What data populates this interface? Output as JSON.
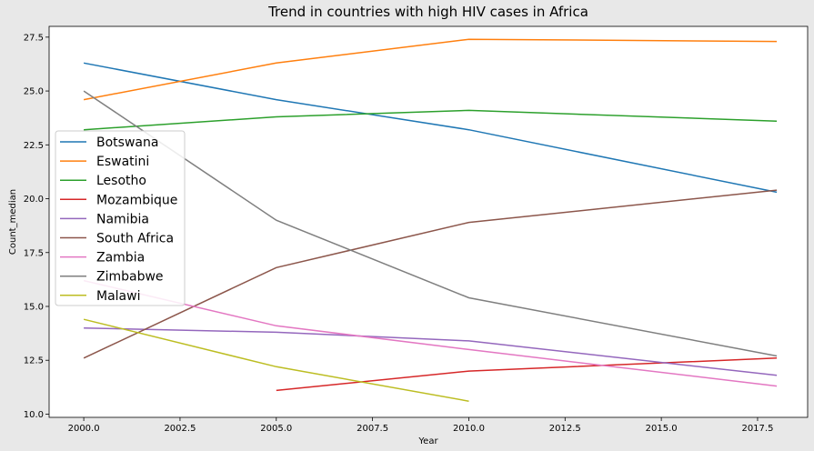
{
  "chart_data": {
    "type": "line",
    "title": "Trend in countries with high HIV cases in Africa",
    "xlabel": "Year",
    "ylabel": "Count_median",
    "xlim": [
      1999.1,
      2018.8
    ],
    "ylim": [
      9.85,
      28.0
    ],
    "xticks": [
      2000.0,
      2002.5,
      2005.0,
      2007.5,
      2010.0,
      2012.5,
      2015.0,
      2017.5
    ],
    "xtick_labels": [
      "2000.0",
      "2002.5",
      "2005.0",
      "2007.5",
      "2010.0",
      "2012.5",
      "2015.0",
      "2017.5"
    ],
    "yticks": [
      10.0,
      12.5,
      15.0,
      17.5,
      20.0,
      22.5,
      25.0,
      27.5
    ],
    "ytick_labels": [
      "10.0",
      "12.5",
      "15.0",
      "17.5",
      "20.0",
      "22.5",
      "25.0",
      "27.5"
    ],
    "grid": false,
    "legend_position": "center-left",
    "series": [
      {
        "name": "Botswana",
        "color": "#1f77b4",
        "x": [
          2000,
          2005,
          2010,
          2018
        ],
        "y": [
          26.3,
          24.6,
          23.2,
          20.3
        ]
      },
      {
        "name": "Eswatini",
        "color": "#ff7f0e",
        "x": [
          2000,
          2005,
          2010,
          2018
        ],
        "y": [
          24.6,
          26.3,
          27.4,
          27.3
        ]
      },
      {
        "name": "Lesotho",
        "color": "#2ca02c",
        "x": [
          2000,
          2005,
          2010,
          2018
        ],
        "y": [
          23.2,
          23.8,
          24.1,
          23.6
        ]
      },
      {
        "name": "Mozambique",
        "color": "#d62728",
        "x": [
          2005,
          2010,
          2018
        ],
        "y": [
          11.1,
          12.0,
          12.6
        ]
      },
      {
        "name": "Namibia",
        "color": "#9467bd",
        "x": [
          2000,
          2005,
          2010,
          2018
        ],
        "y": [
          14.0,
          13.8,
          13.4,
          11.8
        ]
      },
      {
        "name": "South Africa",
        "color": "#8c564b",
        "x": [
          2000,
          2005,
          2010,
          2018
        ],
        "y": [
          12.6,
          16.8,
          18.9,
          20.4
        ]
      },
      {
        "name": "Zambia",
        "color": "#e377c2",
        "x": [
          2000,
          2005,
          2010,
          2018
        ],
        "y": [
          16.2,
          14.1,
          13.0,
          11.3
        ]
      },
      {
        "name": "Zimbabwe",
        "color": "#7f7f7f",
        "x": [
          2000,
          2005,
          2010,
          2018
        ],
        "y": [
          25.0,
          19.0,
          15.4,
          12.7
        ]
      },
      {
        "name": "Malawi",
        "color": "#bcbd22",
        "x": [
          2000,
          2005,
          2010
        ],
        "y": [
          14.4,
          12.2,
          10.6
        ]
      }
    ]
  }
}
